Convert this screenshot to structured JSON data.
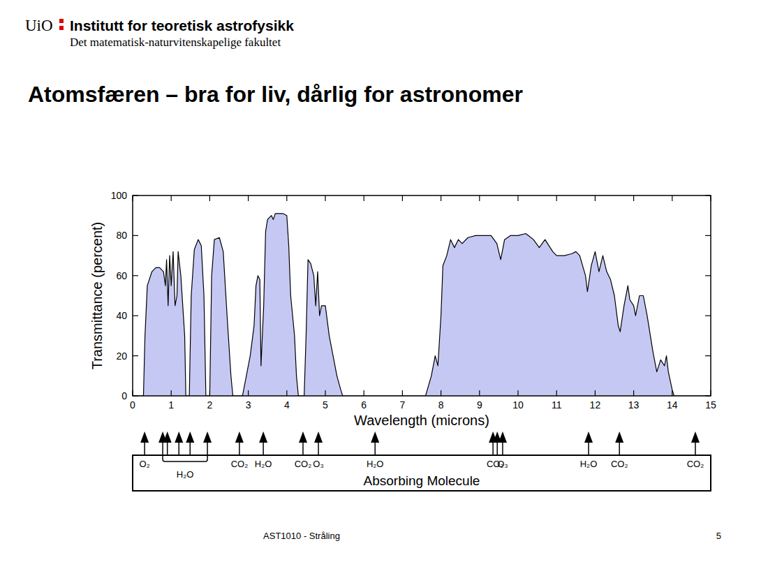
{
  "header": {
    "logo": "UiO",
    "institute": "Institutt for teoretisk astrofysikk",
    "faculty": "Det matematisk-naturvitenskapelige fakultet"
  },
  "slide": {
    "title": "Atomsfæren – bra for liv, dårlig for astronomer",
    "footer": "AST1010 - Stråling",
    "page": "5"
  },
  "chart_data": {
    "type": "area",
    "x_label": "Wavelength (microns)",
    "y_label": "Transmittance (percent)",
    "color": "#c6c8f4",
    "grid": false,
    "xlim": [
      0,
      15
    ],
    "ylim": [
      0,
      100
    ],
    "xticks": [
      0,
      1,
      2,
      3,
      4,
      5,
      6,
      7,
      8,
      9,
      10,
      11,
      12,
      13,
      14,
      15
    ],
    "yticks": [
      0,
      20,
      40,
      60,
      80,
      100
    ],
    "x": [
      0,
      0.28,
      0.32,
      0.38,
      0.5,
      0.6,
      0.7,
      0.8,
      0.85,
      0.88,
      0.92,
      0.96,
      1.0,
      1.05,
      1.1,
      1.15,
      1.18,
      1.25,
      1.3,
      1.35,
      1.38,
      1.47,
      1.52,
      1.6,
      1.7,
      1.78,
      1.85,
      1.9,
      2.0,
      2.05,
      2.12,
      2.25,
      2.35,
      2.45,
      2.55,
      2.6,
      2.85,
      2.95,
      3.05,
      3.15,
      3.2,
      3.25,
      3.3,
      3.33,
      3.4,
      3.45,
      3.5,
      3.6,
      3.65,
      3.7,
      3.8,
      3.9,
      4.0,
      4.05,
      4.1,
      4.2,
      4.25,
      4.3,
      4.45,
      4.5,
      4.55,
      4.62,
      4.7,
      4.75,
      4.8,
      4.85,
      4.9,
      5.0,
      5.1,
      5.2,
      5.3,
      5.4,
      5.45,
      7.6,
      7.75,
      7.85,
      7.92,
      8.0,
      8.05,
      8.15,
      8.25,
      8.35,
      8.45,
      8.55,
      8.7,
      8.9,
      9.1,
      9.3,
      9.45,
      9.55,
      9.65,
      9.8,
      10.0,
      10.2,
      10.4,
      10.55,
      10.7,
      10.9,
      11.0,
      11.2,
      11.4,
      11.5,
      11.6,
      11.75,
      11.8,
      11.9,
      12.0,
      12.1,
      12.2,
      12.3,
      12.4,
      12.5,
      12.6,
      12.65,
      12.75,
      12.85,
      12.9,
      13.0,
      13.05,
      13.15,
      13.25,
      13.35,
      13.45,
      13.5,
      13.6,
      13.7,
      13.8,
      13.85,
      13.9,
      14.0,
      14.05,
      15
    ],
    "values": [
      0,
      0,
      30,
      55,
      62,
      64,
      64,
      62,
      55,
      68,
      45,
      70,
      55,
      72,
      45,
      50,
      72,
      60,
      45,
      30,
      0,
      0,
      50,
      73,
      78,
      75,
      50,
      0,
      0,
      60,
      78,
      79,
      72,
      40,
      10,
      0,
      0,
      10,
      20,
      35,
      55,
      60,
      58,
      15,
      45,
      82,
      88,
      90,
      88,
      91,
      91,
      91,
      90,
      75,
      50,
      30,
      10,
      0,
      0,
      30,
      68,
      66,
      60,
      45,
      62,
      40,
      45,
      45,
      30,
      20,
      10,
      3,
      0,
      0,
      10,
      20,
      15,
      40,
      65,
      70,
      78,
      74,
      78,
      76,
      79,
      80,
      80,
      80,
      76,
      68,
      78,
      80,
      80,
      81,
      78,
      74,
      78,
      72,
      70,
      70,
      71,
      72,
      70,
      60,
      52,
      65,
      72,
      62,
      70,
      62,
      58,
      50,
      35,
      32,
      45,
      55,
      48,
      45,
      40,
      50,
      50,
      40,
      28,
      22,
      12,
      18,
      15,
      20,
      12,
      3,
      0,
      0
    ],
    "absorbers": {
      "label": "Absorbing Molecule",
      "items": [
        {
          "text": "O₂",
          "x": [
            0.31
          ]
        },
        {
          "text": "H₂O",
          "x": [
            0.78,
            0.9,
            1.2,
            1.49,
            1.94
          ]
        },
        {
          "text": "CO₂",
          "x": [
            2.77
          ]
        },
        {
          "text": "H₂O",
          "x": [
            3.39
          ]
        },
        {
          "text": "CO₂",
          "x": [
            4.42
          ]
        },
        {
          "text": "O₃",
          "x": [
            4.82
          ]
        },
        {
          "text": "H₂O",
          "x": [
            6.29
          ]
        },
        {
          "text": "CO₂",
          "x": [
            9.35,
            9.46
          ]
        },
        {
          "text": "O₃",
          "x": [
            9.6
          ]
        },
        {
          "text": "H₂O",
          "x": [
            11.83
          ]
        },
        {
          "text": "CO₂",
          "x": [
            12.63
          ]
        },
        {
          "text": "CO₂",
          "x": [
            14.6
          ]
        }
      ]
    }
  }
}
